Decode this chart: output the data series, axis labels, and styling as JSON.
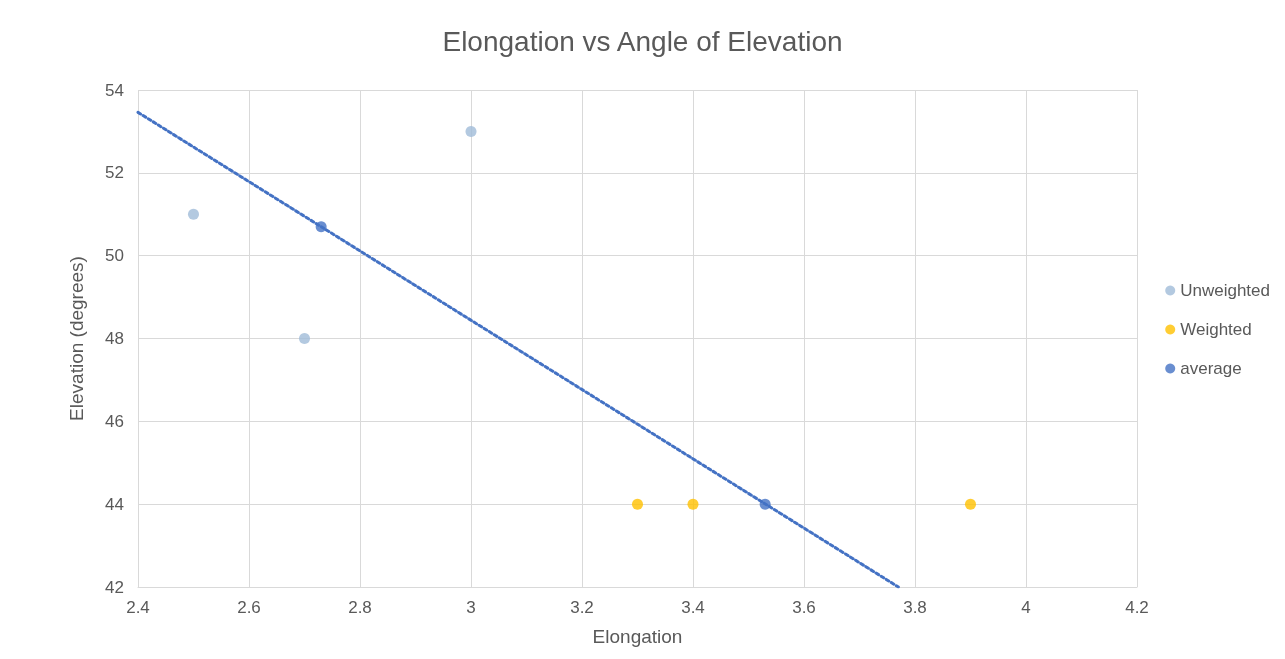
{
  "chart_data": {
    "type": "scatter",
    "title": "Elongation vs Angle of Elevation",
    "xlabel": "Elongation",
    "ylabel": "Elevation (degrees)",
    "xlim": [
      2.4,
      4.2
    ],
    "xticks": [
      2.4,
      2.6,
      2.8,
      3,
      3.2,
      3.4,
      3.6,
      3.8,
      4,
      4.2
    ],
    "ylim": [
      42,
      54
    ],
    "yticks": [
      42,
      44,
      46,
      48,
      50,
      52,
      54
    ],
    "grid": true,
    "legend": "right",
    "marker": "circle",
    "series": [
      {
        "name": "Unweighted",
        "color": "#a0bcd8",
        "x": [
          2.5,
          2.7,
          3.0
        ],
        "values": [
          51,
          48,
          53
        ]
      },
      {
        "name": "Weighted",
        "color": "#ffc000",
        "x": [
          3.3,
          3.4,
          3.9
        ],
        "values": [
          44,
          44,
          44
        ]
      },
      {
        "name": "average",
        "color": "#4472c4",
        "x": [
          2.73,
          3.53
        ],
        "values": [
          50.7,
          44
        ]
      },
      {
        "type": "line",
        "color": "#4472c4",
        "line_style": "dotted",
        "marker": "none",
        "x": [
          2.4,
          3.77
        ],
        "values": [
          53.46,
          42
        ]
      }
    ]
  }
}
